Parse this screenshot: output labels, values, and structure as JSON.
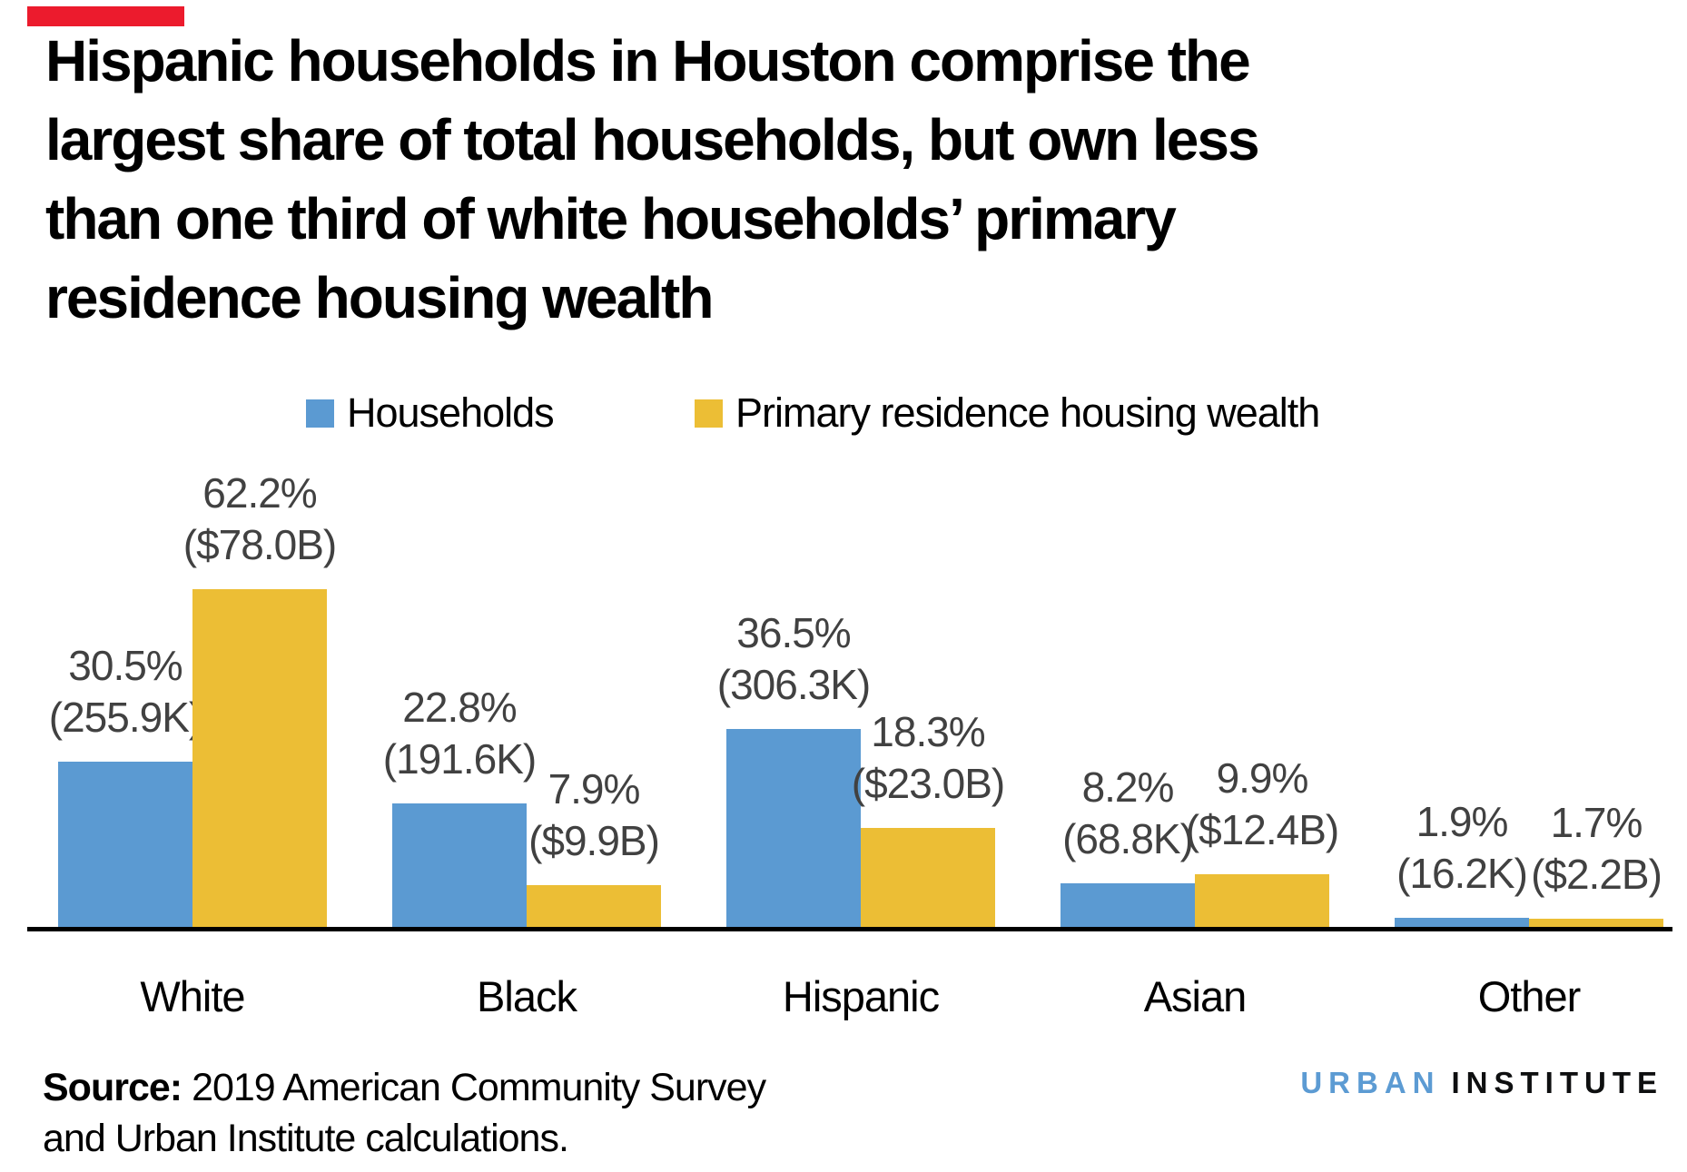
{
  "annotation": {
    "red_marker_color": "#ec1b2d"
  },
  "title_lines": [
    "Hispanic households in Houston comprise the",
    "largest share of total households, but own less",
    "than one third of white households’ primary",
    "residence housing wealth"
  ],
  "legend": {
    "items": [
      {
        "label": "Households",
        "color": "#5b9ad2"
      },
      {
        "label": "Primary residence housing wealth",
        "color": "#ecbe35"
      }
    ]
  },
  "chart_data": {
    "type": "bar",
    "title": "Hispanic households in Houston comprise the largest share of total households, but own less than one third of white households’ primary residence housing wealth",
    "categories": [
      "White",
      "Black",
      "Hispanic",
      "Asian",
      "Other"
    ],
    "series": [
      {
        "name": "Households",
        "color": "#5b9ad2",
        "unit": "percent of total households",
        "values": [
          30.5,
          22.8,
          36.5,
          8.2,
          1.9
        ],
        "counts": [
          "255.9K",
          "191.6K",
          "306.3K",
          "68.8K",
          "16.2K"
        ],
        "labels": [
          [
            "30.5%",
            "(255.9K)"
          ],
          [
            "22.8%",
            "(191.6K)"
          ],
          [
            "36.5%",
            "(306.3K)"
          ],
          [
            "8.2%",
            "(68.8K)"
          ],
          [
            "1.9%",
            "(16.2K)"
          ]
        ]
      },
      {
        "name": "Primary residence housing wealth",
        "color": "#ecbe35",
        "unit": "percent of total housing wealth",
        "values": [
          62.2,
          7.9,
          18.3,
          9.9,
          1.7
        ],
        "amounts": [
          "$78.0B",
          "$9.9B",
          "$23.0B",
          "$12.4B",
          "$2.2B"
        ],
        "labels": [
          [
            "62.2%",
            "($78.0B)"
          ],
          [
            "7.9%",
            "($9.9B)"
          ],
          [
            "18.3%",
            "($23.0B)"
          ],
          [
            "9.9%",
            "($12.4B)"
          ],
          [
            "1.7%",
            "($2.2B)"
          ]
        ]
      }
    ],
    "ylim": [
      0,
      66
    ],
    "grid": false,
    "y_axis_shown": false,
    "legend_position": "top"
  },
  "source": {
    "label": "Source:",
    "line1_rest": "2019 American Community Survey",
    "line2": "and Urban Institute calculations."
  },
  "logo": {
    "word1": "URBAN",
    "word2": "INSTITUTE",
    "word1_color": "#5c9bd3",
    "word2_color": "#0e0f10"
  }
}
